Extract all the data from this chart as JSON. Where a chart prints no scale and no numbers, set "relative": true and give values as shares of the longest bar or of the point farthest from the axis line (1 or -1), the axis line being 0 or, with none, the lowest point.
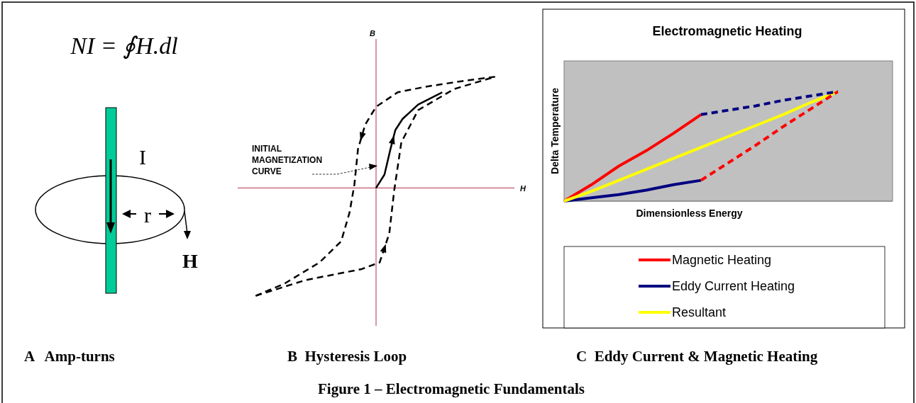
{
  "chart_data": [
    {
      "type": "other",
      "annotations": [
        "NI = ∮H.dl",
        "I",
        "r",
        "H",
        "A   Amp-turns",
        "Figure 1 – Electromagnetic Fundamentals"
      ]
    },
    {
      "type": "other",
      "xlabel": "H",
      "ylabel": "B",
      "annotations": [
        "INITIAL MAGNETIZATION CURVE",
        "B  Hysteresis Loop"
      ]
    },
    {
      "type": "line",
      "relative": true,
      "title": "Electromagnetic Heating",
      "xlabel": "Dimensionless Energy",
      "ylabel": "Delta Temperature",
      "legend": "bottom",
      "annotations": [
        "C  Eddy Current & Magnetic Heating"
      ],
      "categories": [
        null,
        null,
        null,
        null,
        null,
        null,
        null,
        null,
        null,
        null,
        null
      ],
      "series": [
        {
          "name": "Magnetic Heating",
          "color": "#ff0000",
          "line_style": "solid",
          "values": [
            0,
            0.15,
            0.32,
            0.46,
            0.62,
            0.79,
            null,
            null,
            null,
            null,
            null
          ]
        },
        {
          "name": "Eddy Current Heating",
          "color": "#000080",
          "line_style": "solid",
          "values": [
            0,
            0.03,
            0.06,
            0.1,
            0.15,
            0.19,
            null,
            null,
            null,
            null,
            null
          ]
        },
        {
          "name": "Resultant",
          "color": "#ffff00",
          "line_style": "solid",
          "values": [
            0,
            0.09,
            0.19,
            0.29,
            0.39,
            0.49,
            0.59,
            0.69,
            0.79,
            0.9,
            1.0
          ]
        },
        {
          "color": "#000080",
          "line_style": "dashed",
          "values": [
            null,
            null,
            null,
            null,
            null,
            0.79,
            0.83,
            0.87,
            0.92,
            0.96,
            1.0
          ]
        },
        {
          "color": "#ff0000",
          "line_style": "dashed",
          "values": [
            null,
            null,
            null,
            null,
            null,
            0.19,
            0.35,
            0.51,
            0.68,
            0.84,
            1.0
          ]
        }
      ]
    }
  ]
}
